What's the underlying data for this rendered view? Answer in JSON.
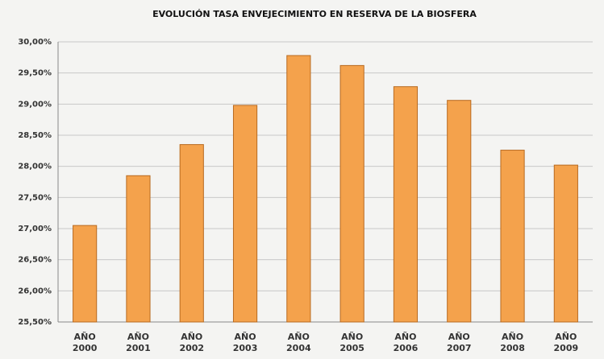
{
  "chart_data": {
    "type": "bar",
    "title": "EVOLUCIÓN TASA ENVEJECIMIENTO EN RESERVA DE LA BIOSFERA",
    "categories": [
      "AÑO 2000",
      "AÑO 2001",
      "AÑO 2002",
      "AÑO 2003",
      "AÑO 2004",
      "AÑO 2005",
      "AÑO 2006",
      "AÑO 2007",
      "AÑO 2008",
      "AÑO 2009"
    ],
    "values": [
      27.05,
      27.85,
      28.35,
      28.98,
      29.78,
      29.62,
      29.28,
      29.06,
      28.26,
      28.02
    ],
    "color": "#f4a24c",
    "ylim": [
      25.5,
      30
    ],
    "yticks": [
      {
        "value": 25.5,
        "label": "25,50%"
      },
      {
        "value": 26,
        "label": "26,00%"
      },
      {
        "value": 26.5,
        "label": "26,50%"
      },
      {
        "value": 27,
        "label": "27,00%"
      },
      {
        "value": 27.5,
        "label": "27,50%"
      },
      {
        "value": 28,
        "label": "28,00%"
      },
      {
        "value": 28.5,
        "label": "28,50%"
      },
      {
        "value": 29,
        "label": "29,00%"
      },
      {
        "value": 29.5,
        "label": "29,50%"
      },
      {
        "value": 30,
        "label": "30,00%"
      }
    ],
    "grid": true
  }
}
